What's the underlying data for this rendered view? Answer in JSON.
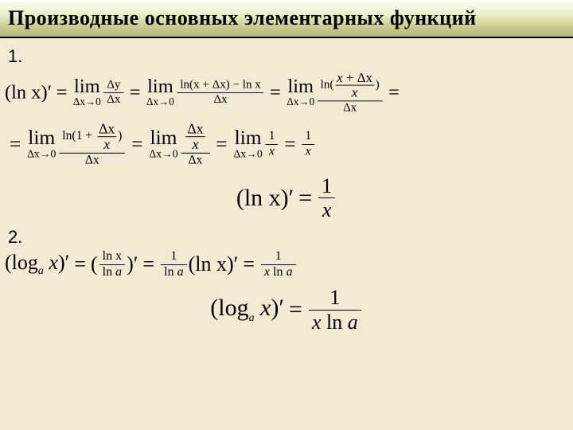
{
  "colors": {
    "page_bg": "#f3ead3",
    "title_gradient_top": "#fdfdf6",
    "title_gradient_mid1": "#eceec8",
    "title_gradient_mid2": "#cdcf97",
    "title_gradient_bottom": "#b3b578",
    "text": "#000000",
    "rule": "#000000"
  },
  "typography": {
    "title_family": "Times New Roman",
    "title_size_pt": 20,
    "title_weight": "bold",
    "body_family": "Times New Roman",
    "body_size_pt": 20,
    "number_label_family": "Arial",
    "number_label_size_pt": 16
  },
  "title": "Производные основных элементарных функций",
  "labels": {
    "item1": "1.",
    "item2": "2."
  },
  "glyphs": {
    "delta": "Δ",
    "arrow": "→",
    "prime": "′",
    "i_dot": "i"
  },
  "math": {
    "ln": "ln",
    "lim": "lim",
    "log": "log",
    "x": "x",
    "y": "y",
    "a": "a",
    "one": "1",
    "zero": "0",
    "dx": "Δx",
    "dy": "Δy",
    "to0": "Δx→0",
    "lnx": "ln x",
    "lnxplusdx": "ln(x + Δx)",
    "minus": "−",
    "plus": "+",
    "eqsym": "=",
    "open": "(",
    "close": ")",
    "lnxprime": "(ln x)′",
    "logax": "log",
    "xplusdx_over_x_label": "ln",
    "x_ln_a": "x ln a"
  },
  "equations": {
    "eq1_line1_description": "(ln x)' = lim Δy/Δx = lim (ln(x+Δx) − ln x)/Δx = lim ln((x+Δx)/x)/Δx =",
    "eq1_line2_description": "= lim ln(1 + Δx/x)/Δx = lim (Δx/x)/Δx = lim 1/x = 1/x",
    "eq1_result": "(ln x)' = 1/x",
    "eq2_line1_description": "(log_a x)' = (ln x / ln a)' = (1/ln a)(ln x)' = 1/(x ln a)",
    "eq2_result": "(log_a x)' = 1/(x ln a)"
  }
}
